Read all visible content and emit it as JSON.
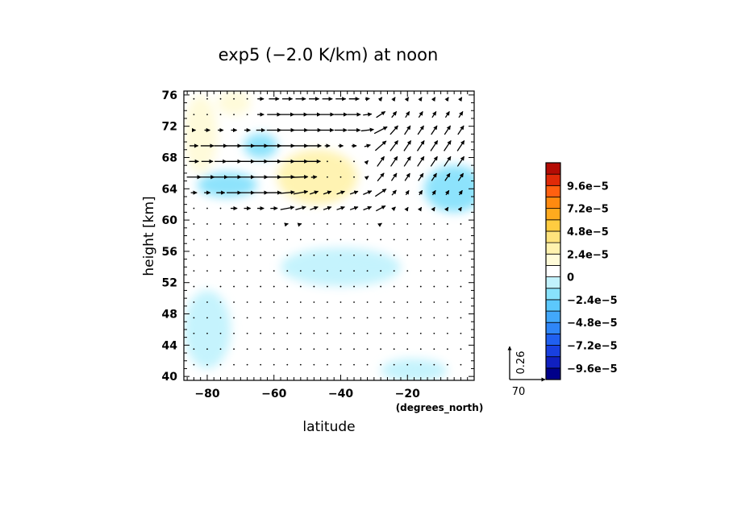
{
  "chart_data": {
    "type": "heatmap",
    "title": "exp5 (−2.0 K/km) at noon",
    "xlabel": "latitude",
    "xunits": "(degrees_north)",
    "ylabel": "height [km]",
    "xlim": [
      -87,
      0
    ],
    "ylim": [
      39.5,
      76.5
    ],
    "xticks": [
      -80,
      -60,
      -40,
      -20
    ],
    "xtick_labels": [
      "−80",
      "−60",
      "−40",
      "−20"
    ],
    "yticks": [
      40,
      44,
      48,
      52,
      56,
      60,
      64,
      68,
      72,
      76
    ],
    "ytick_labels": [
      "40",
      "44",
      "48",
      "52",
      "56",
      "60",
      "64",
      "68",
      "72",
      "76"
    ],
    "colorbar": {
      "levels": [
        -0.000108,
        -9.6e-05,
        -8.4e-05,
        -7.2e-05,
        -6e-05,
        -4.8e-05,
        -3.6e-05,
        -2.4e-05,
        -1.2e-05,
        0,
        1.2e-05,
        2.4e-05,
        3.6e-05,
        4.8e-05,
        6e-05,
        7.2e-05,
        8.4e-05,
        9.6e-05,
        0.000108
      ],
      "colors": [
        "#00008a",
        "#1020c0",
        "#1840e0",
        "#2060f0",
        "#2f86f8",
        "#42a8fb",
        "#5cc8fc",
        "#88e2fc",
        "#c2f2fd",
        "#ffffff",
        "#fffbd8",
        "#fff2ae",
        "#ffe37c",
        "#ffcc40",
        "#ffaa1e",
        "#ff8a10",
        "#ff6010",
        "#e02a08",
        "#b40c04"
      ],
      "labels": [
        "9.6e−5",
        "7.2e−5",
        "4.8e−5",
        "2.4e−5",
        "0",
        "−2.4e−5",
        "−4.8e−5",
        "−7.2e−5",
        "−9.6e−5"
      ]
    },
    "field_blobs": [
      {
        "lat": -47,
        "z": 65.5,
        "value": 2.6e-05,
        "rx": 12,
        "ry": 3.5
      },
      {
        "lat": -82,
        "z": 71,
        "value": 1.4e-05,
        "rx": 5,
        "ry": 5
      },
      {
        "lat": -72,
        "z": 75,
        "value": 1.4e-05,
        "rx": 5,
        "ry": 1.6
      },
      {
        "lat": -30,
        "z": 58.5,
        "value": 1e-05,
        "rx": 16,
        "ry": 4
      },
      {
        "lat": -45,
        "z": 50,
        "value": 8e-06,
        "rx": 12,
        "ry": 3
      },
      {
        "lat": -10,
        "z": 45,
        "value": 9e-06,
        "rx": 9,
        "ry": 3.5
      },
      {
        "lat": -55,
        "z": 42.5,
        "value": 9e-06,
        "rx": 16,
        "ry": 2.5
      },
      {
        "lat": -74,
        "z": 64.5,
        "value": -1.6e-05,
        "rx": 9,
        "ry": 1.6
      },
      {
        "lat": -64,
        "z": 69.5,
        "value": -1.5e-05,
        "rx": 5,
        "ry": 1.6
      },
      {
        "lat": -6,
        "z": 64,
        "value": -1.5e-05,
        "rx": 9,
        "ry": 3
      },
      {
        "lat": -40,
        "z": 54,
        "value": -8e-06,
        "rx": 18,
        "ry": 2.5
      },
      {
        "lat": -80,
        "z": 46,
        "value": -8e-06,
        "rx": 7,
        "ry": 5
      },
      {
        "lat": -18,
        "z": 40.8,
        "value": -8e-06,
        "rx": 10,
        "ry": 1.5
      }
    ],
    "vectors": {
      "reference": {
        "u_label": "70",
        "w_label": "0.26"
      },
      "lat_step": 4,
      "z_step": 2,
      "lat_start": -84,
      "z_start": 41.5,
      "jets": [
        {
          "lat0": -62,
          "lat1": -35,
          "z": 74.7,
          "u": 40,
          "w": 0,
          "fall": 2.2
        },
        {
          "lat0": -60,
          "lat1": -28,
          "z": 71.5,
          "u": 40,
          "w": 0,
          "fall": 2.2
        },
        {
          "lat0": -82,
          "lat1": -50,
          "z": 69.5,
          "u": 45,
          "w": 0,
          "fall": 2.2
        },
        {
          "lat0": -70,
          "lat1": -50,
          "z": 67.5,
          "u": 50,
          "w": 0,
          "fall": 2.2
        },
        {
          "lat0": -84,
          "lat1": -55,
          "z": 65.5,
          "u": 50,
          "w": 0,
          "fall": 2.2
        },
        {
          "lat0": -72,
          "lat1": -55,
          "z": 63.5,
          "u": 50,
          "w": 0,
          "fall": 2.2
        },
        {
          "lat0": -55,
          "lat1": -28,
          "z": 62.5,
          "u": 35,
          "w": 0.05,
          "fall": 2.2
        },
        {
          "lat0": -28,
          "lat1": 0,
          "z": 69,
          "u": 25,
          "w": 0.15,
          "fall": 6
        }
      ]
    }
  }
}
